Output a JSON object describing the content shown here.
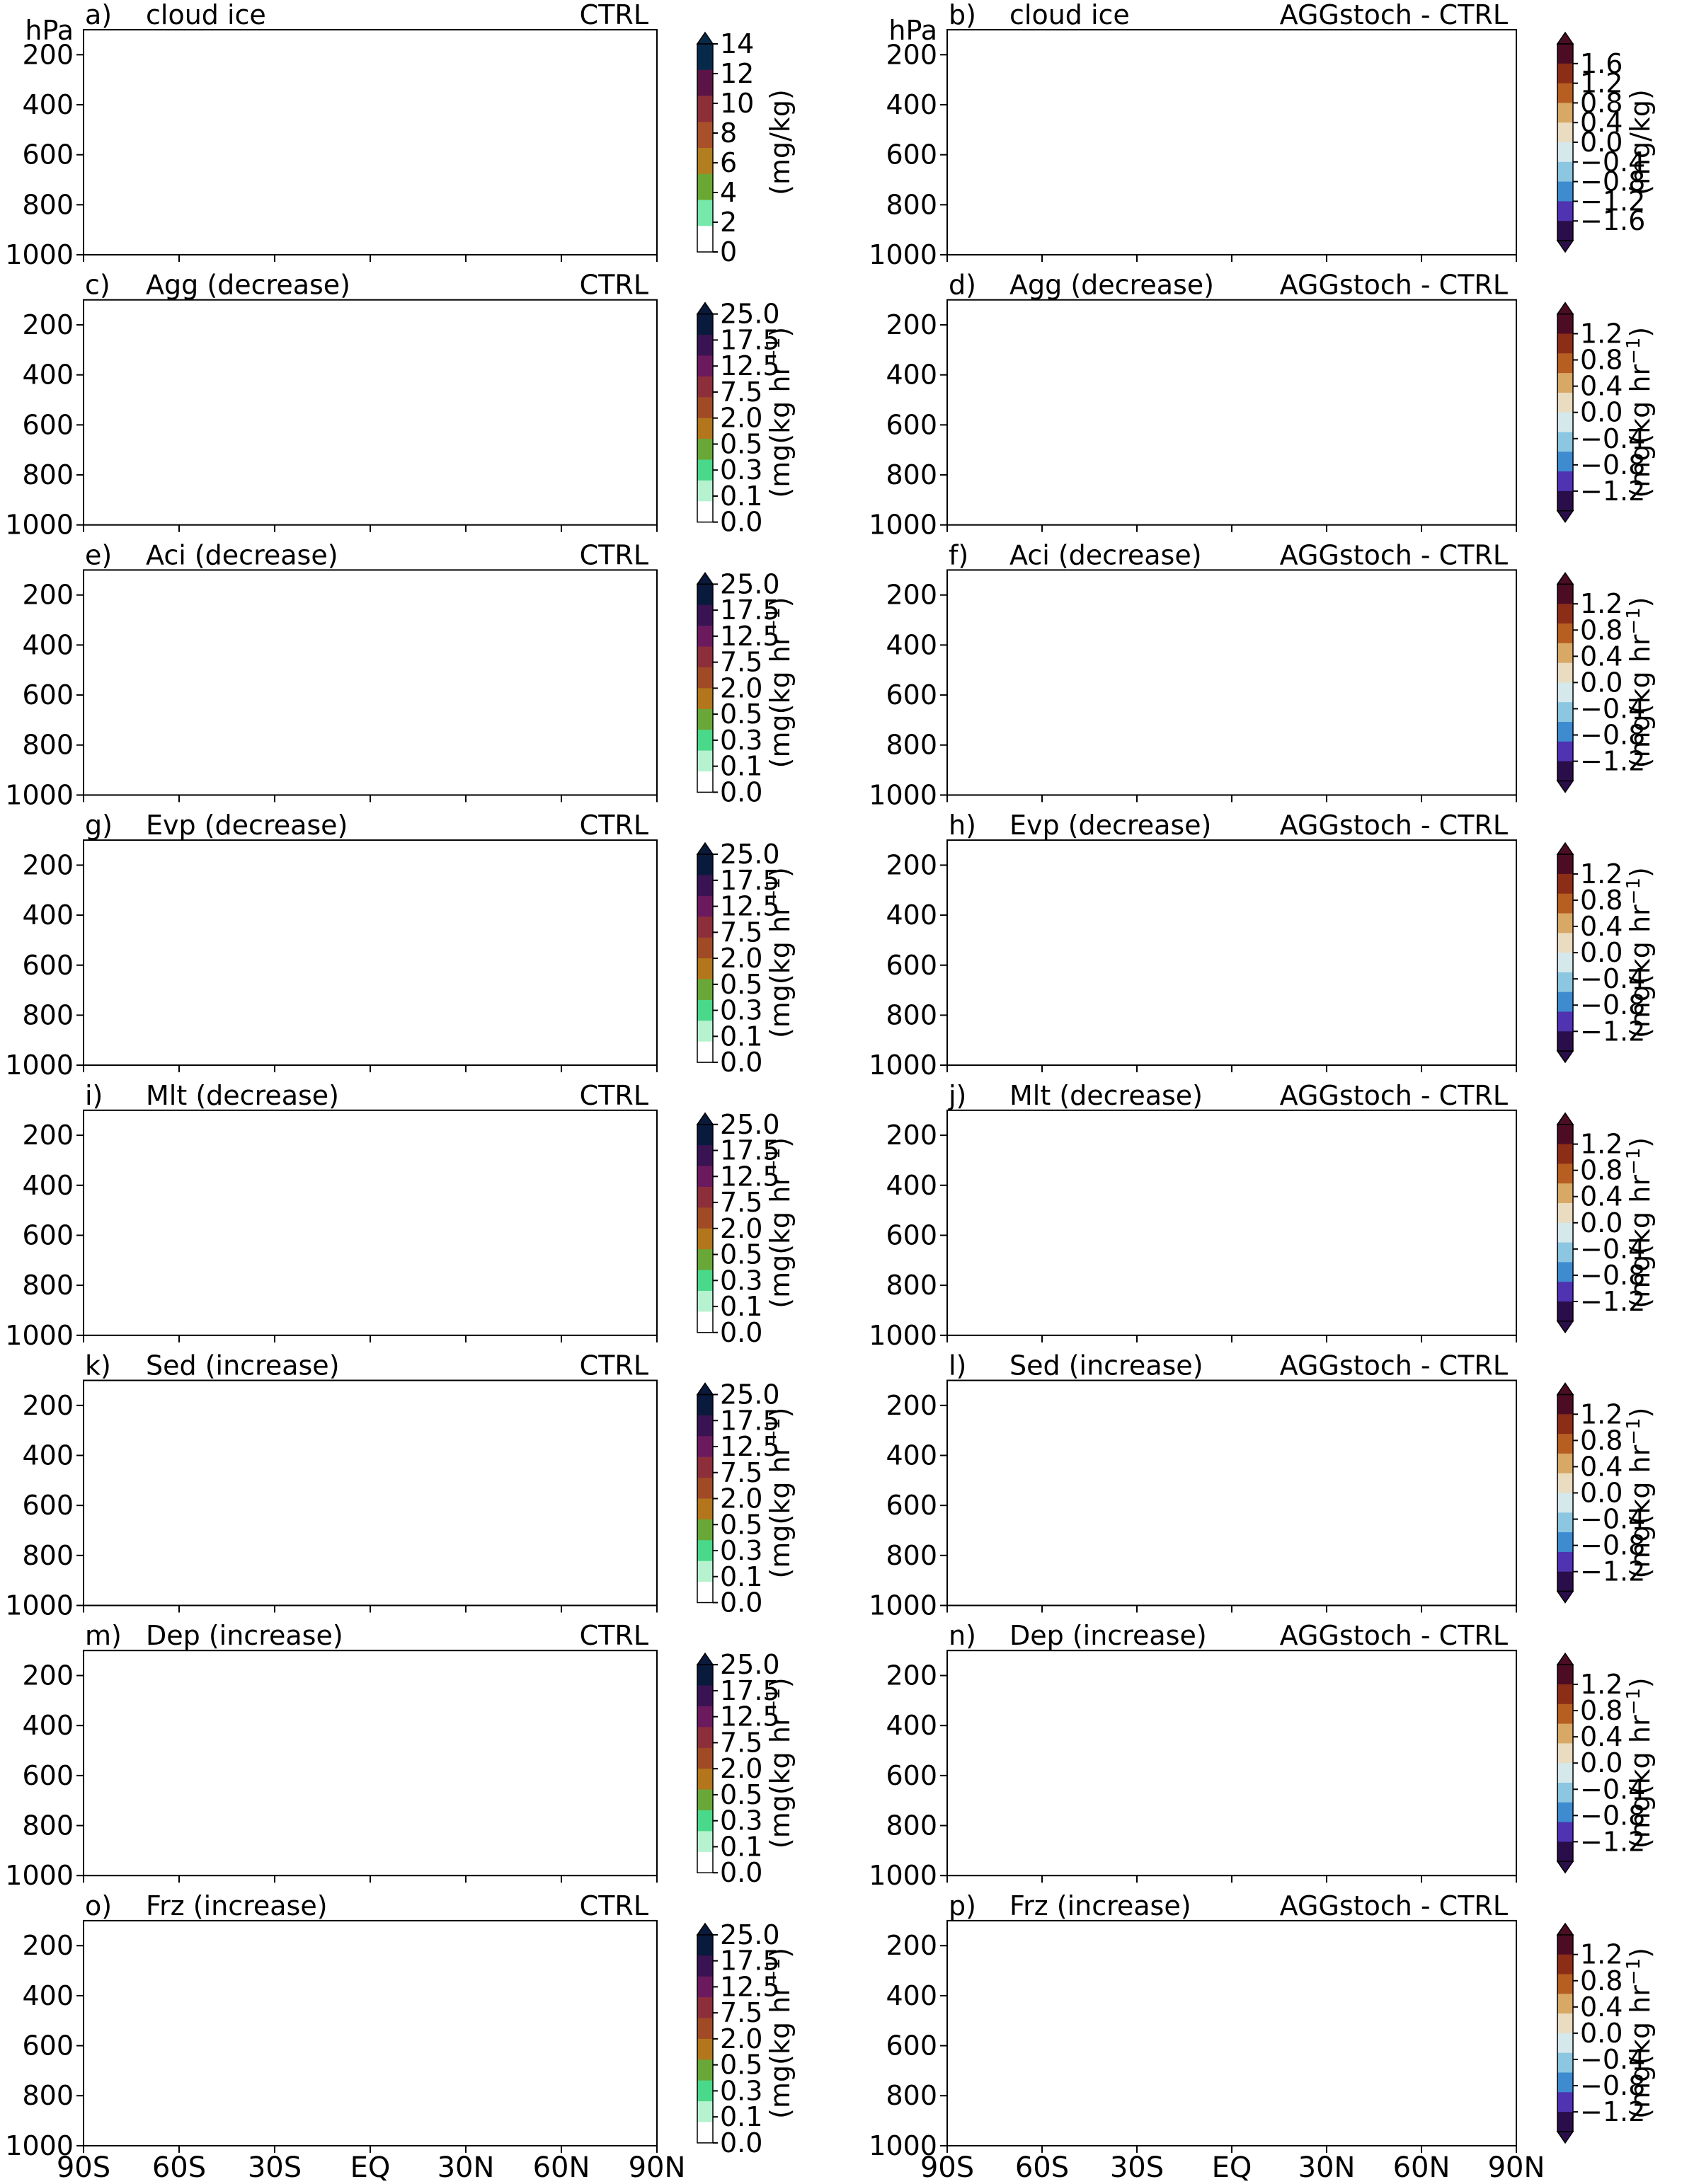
{
  "chart_data": {
    "type": "contour",
    "layout": "8 rows x 2 columns of latitude-pressure panels",
    "xticks": [
      "90S",
      "60S",
      "30S",
      "EQ",
      "30N",
      "60N",
      "90N"
    ],
    "y_unit": "hPa",
    "yticks_cloud_ice": [
      "200",
      "400",
      "600",
      "800",
      "1000"
    ],
    "yticks_process": [
      "200",
      "400",
      "600",
      "800",
      "1000"
    ],
    "ylim": [
      1000,
      100
    ],
    "colorbars": {
      "ctrl_ice": {
        "label": "(mg/kg)",
        "levels": [
          "14",
          "12",
          "10",
          "8",
          "6",
          "4",
          "2",
          "0"
        ],
        "colors": [
          "#082a4a",
          "#5c1446",
          "#8d2f38",
          "#a8502a",
          "#b37e1f",
          "#6aa833",
          "#76e8ab",
          "#ffffff"
        ]
      },
      "diff_ice": {
        "label": "(mg/kg)",
        "levels": [
          "1.6",
          "1.2",
          "0.8",
          "0.4",
          "0.0",
          "−0.4",
          "−0.8",
          "−1.2",
          "−1.6"
        ],
        "colors": [
          "#4c0d24",
          "#8c2d18",
          "#b75e22",
          "#d7a866",
          "#e9dcc1",
          "#d5e8ec",
          "#8cc6e0",
          "#3e8bd0",
          "#4f33b0",
          "#2a0e4a"
        ]
      },
      "ctrl_proc": {
        "label": "(mg(kg hr",
        "label_sup": "−1",
        "label_end": ")",
        "levels": [
          "25.0",
          "17.5",
          "12.5",
          "7.5",
          "2.0",
          "0.5",
          "0.3",
          "0.1",
          "0.0"
        ],
        "colors": [
          "#0a1a3c",
          "#3a1352",
          "#6b1a5e",
          "#8d2f3a",
          "#a04a26",
          "#b3761c",
          "#69a838",
          "#4ad98a",
          "#b6f2cf",
          "#ffffff"
        ]
      },
      "diff_proc": {
        "label": "(mg(kg hr",
        "label_sup": "−1",
        "label_end": ")",
        "levels": [
          "1.2",
          "0.8",
          "0.4",
          "0.0",
          "−0.4",
          "−0.8",
          "−1.2"
        ],
        "colors": [
          "#4c0d24",
          "#8c2d18",
          "#b75e22",
          "#d7a866",
          "#e9dcc1",
          "#d5e8ec",
          "#8cc6e0",
          "#3e8bd0",
          "#4f33b0",
          "#2a0e4a"
        ]
      }
    },
    "panels": [
      {
        "letter": "a)",
        "title": "cloud ice",
        "run": "CTRL",
        "cbar": "ctrl_ice",
        "color_hint": "#a8502a"
      },
      {
        "letter": "b)",
        "title": "cloud ice",
        "run": "AGGstoch - CTRL",
        "cbar": "diff_ice",
        "color_hint": "#3e8bd0"
      },
      {
        "letter": "c)",
        "title": "Agg (decrease)",
        "run": "CTRL",
        "cbar": "ctrl_proc",
        "color_hint": "#a04a26"
      },
      {
        "letter": "d)",
        "title": "Agg (decrease)",
        "run": "AGGstoch - CTRL",
        "cbar": "diff_proc",
        "color_hint": "#b75e22"
      },
      {
        "letter": "e)",
        "title": "Aci (decrease)",
        "run": "CTRL",
        "cbar": "ctrl_proc",
        "color_hint": "#8d2f3a"
      },
      {
        "letter": "f)",
        "title": "Aci (decrease)",
        "run": "AGGstoch - CTRL",
        "cbar": "diff_proc",
        "color_hint": "#3e8bd0"
      },
      {
        "letter": "g)",
        "title": "Evp (decrease)",
        "run": "CTRL",
        "cbar": "ctrl_proc",
        "color_hint": "#b3761c"
      },
      {
        "letter": "h)",
        "title": "Evp (decrease)",
        "run": "AGGstoch - CTRL",
        "cbar": "diff_proc",
        "color_hint": "#d5e8ec"
      },
      {
        "letter": "i)",
        "title": "Mlt (decrease)",
        "run": "CTRL",
        "cbar": "ctrl_proc",
        "color_hint": "#b3761c"
      },
      {
        "letter": "j)",
        "title": "Mlt (decrease)",
        "run": "AGGstoch - CTRL",
        "cbar": "diff_proc",
        "color_hint": "#d5e8ec"
      },
      {
        "letter": "k)",
        "title": "Sed (increase)",
        "run": "CTRL",
        "cbar": "ctrl_proc",
        "color_hint": "#a04a26"
      },
      {
        "letter": "l)",
        "title": "Sed (increase)",
        "run": "AGGstoch - CTRL",
        "cbar": "diff_proc",
        "color_hint": "#8cc6e0"
      },
      {
        "letter": "m)",
        "title": "Dep (increase)",
        "run": "CTRL",
        "cbar": "ctrl_proc",
        "color_hint": "#6b1a5e"
      },
      {
        "letter": "n)",
        "title": "Dep (increase)",
        "run": "AGGstoch - CTRL",
        "cbar": "diff_proc",
        "color_hint": "#3e8bd0"
      },
      {
        "letter": "o)",
        "title": "Frz (increase)",
        "run": "CTRL",
        "cbar": "ctrl_proc",
        "color_hint": "#b6f2cf"
      },
      {
        "letter": "p)",
        "title": "Frz (increase)",
        "run": "AGGstoch - CTRL",
        "cbar": "diff_proc",
        "color_hint": "#e9dcc1"
      }
    ]
  }
}
